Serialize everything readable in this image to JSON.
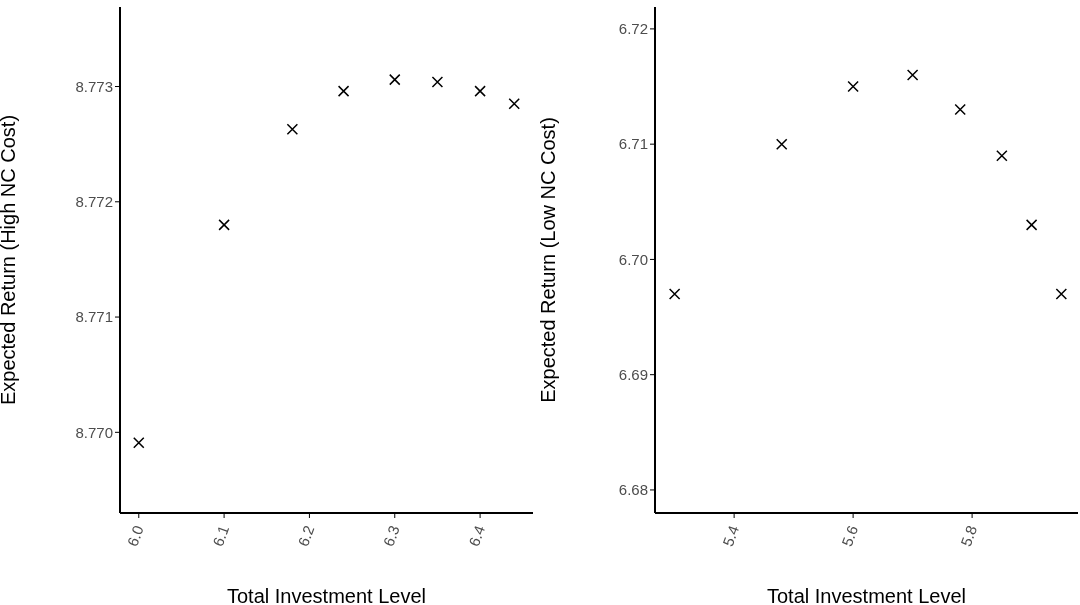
{
  "chart_data": [
    {
      "type": "scatter",
      "xlabel": "Total Investment Level",
      "ylabel": "Expected Return (High NC Cost)",
      "marker": "cross",
      "color": "#000000",
      "x": [
        6.0,
        6.1,
        6.18,
        6.24,
        6.3,
        6.35,
        6.4,
        6.44
      ],
      "values": [
        8.76991,
        8.7718,
        8.77263,
        8.77296,
        8.77306,
        8.77304,
        8.77296,
        8.77285
      ],
      "xlim": [
        5.978,
        6.462
      ],
      "xticks": [
        {
          "value": 6.0,
          "label": "6.0"
        },
        6.1,
        6.2,
        6.3,
        6.4
      ],
      "ylim": [
        8.7693,
        8.77369
      ],
      "yticks": [
        {
          "value": 8.77,
          "label": "8.770"
        },
        8.771,
        8.772,
        8.773
      ]
    },
    {
      "type": "scatter",
      "xlabel": "Total Investment Level",
      "ylabel": "Expected Return (Low NC Cost)",
      "marker": "cross",
      "color": "#000000",
      "x": [
        5.3,
        5.48,
        5.6,
        5.7,
        5.78,
        5.85,
        5.9,
        5.95
      ],
      "values": [
        6.697,
        6.71,
        6.715,
        6.716,
        6.713,
        6.709,
        6.703,
        6.697
      ],
      "xlim": [
        5.267,
        5.978
      ],
      "xticks": [
        5.4,
        5.6,
        5.8
      ],
      "ylim": [
        6.678,
        6.7219
      ],
      "yticks": [
        6.68,
        6.69,
        {
          "value": 6.7,
          "label": "6.70"
        },
        6.71,
        6.72
      ]
    }
  ]
}
